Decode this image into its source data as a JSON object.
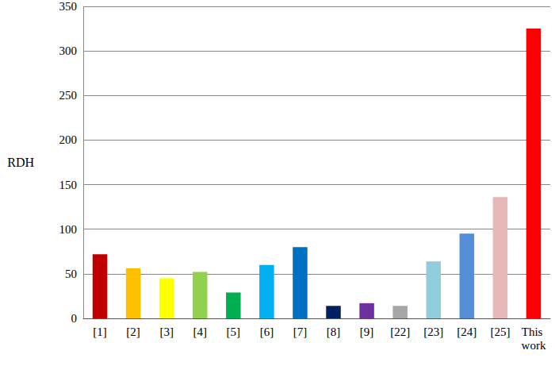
{
  "chart_data": {
    "type": "bar",
    "ylabel": "RDH",
    "categories": [
      "[1]",
      "[2]",
      "[3]",
      "[4]",
      "[5]",
      "[6]",
      "[7]",
      "[8]",
      "[9]",
      "[22]",
      "[23]",
      "[24]",
      "[25]",
      "This work"
    ],
    "values": [
      72,
      56,
      45,
      52,
      29,
      60,
      80,
      14,
      17,
      14,
      64,
      95,
      136,
      325
    ],
    "colors": [
      "#c00000",
      "#ffc000",
      "#ffff00",
      "#92d050",
      "#00b050",
      "#00b0f0",
      "#0070c0",
      "#002060",
      "#7030a0",
      "#a6a6a6",
      "#92cddc",
      "#558ed5",
      "#e6b9b8",
      "#ff0000"
    ],
    "ylim": [
      0,
      350
    ],
    "yticks": [
      0,
      50,
      100,
      150,
      200,
      250,
      300,
      350
    ],
    "grid": true
  }
}
